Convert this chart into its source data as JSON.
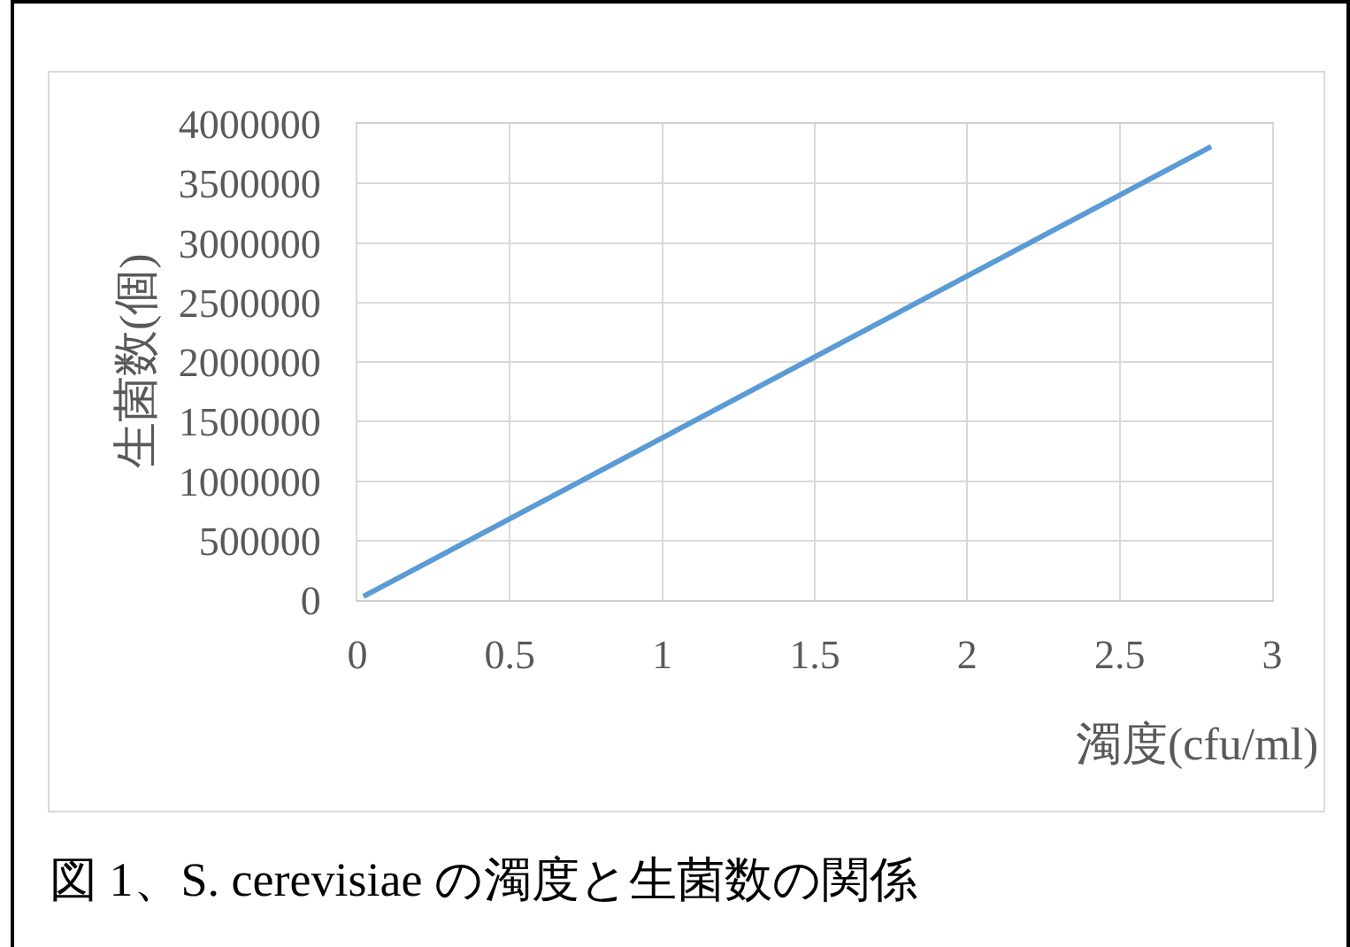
{
  "chart_data": {
    "type": "line",
    "xlabel": "濁度(cfu/ml)",
    "ylabel": "生菌数(個)",
    "annotations": [
      "図 1、S. cerevisiae の濁度と生菌数の関係"
    ],
    "x": [
      0.02,
      2.8
    ],
    "values": [
      30000,
      3810000
    ],
    "color": "#5b9bd5",
    "xlim": [
      0,
      3
    ],
    "xticks": [
      0,
      0.5,
      1,
      1.5,
      2,
      2.5,
      3
    ],
    "ylim": [
      0,
      4000000
    ],
    "yticks": [
      0,
      500000,
      1000000,
      1500000,
      2000000,
      2500000,
      3000000,
      3500000,
      4000000
    ],
    "grid": true,
    "marker": "none",
    "line_style": "solid"
  }
}
